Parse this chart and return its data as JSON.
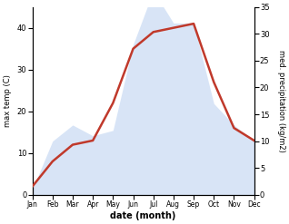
{
  "months": [
    "Jan",
    "Feb",
    "Mar",
    "Apr",
    "May",
    "Jun",
    "Jul",
    "Aug",
    "Sep",
    "Oct",
    "Nov",
    "Dec"
  ],
  "month_indices": [
    0,
    1,
    2,
    3,
    4,
    5,
    6,
    7,
    8,
    9,
    10,
    11
  ],
  "temperature": [
    2,
    8,
    12,
    13,
    22,
    35,
    39,
    40,
    41,
    27,
    16,
    13
  ],
  "precipitation": [
    1,
    10,
    13,
    11,
    12,
    28,
    38,
    32,
    32,
    17,
    13,
    10
  ],
  "temp_color": "#c0392b",
  "precip_fill_color": "#b8cff0",
  "temp_ylim": [
    0,
    45
  ],
  "precip_ylim": [
    0,
    35
  ],
  "temp_yticks": [
    0,
    10,
    20,
    30,
    40
  ],
  "precip_yticks": [
    0,
    5,
    10,
    15,
    20,
    25,
    30,
    35
  ],
  "xlabel": "date (month)",
  "ylabel_left": "max temp (C)",
  "ylabel_right": "med. precipitation (kg/m2)",
  "fig_width": 3.18,
  "fig_height": 2.47,
  "dpi": 100
}
